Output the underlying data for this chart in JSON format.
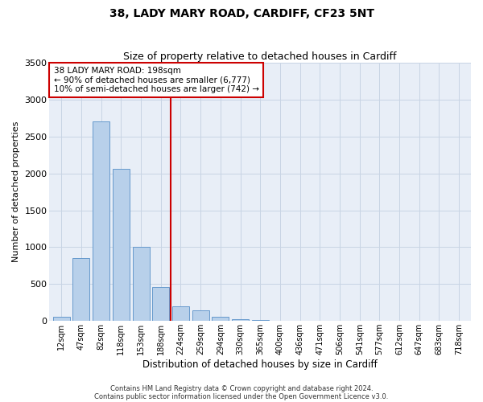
{
  "title": "38, LADY MARY ROAD, CARDIFF, CF23 5NT",
  "subtitle": "Size of property relative to detached houses in Cardiff",
  "xlabel": "Distribution of detached houses by size in Cardiff",
  "ylabel": "Number of detached properties",
  "bar_labels": [
    "12sqm",
    "47sqm",
    "82sqm",
    "118sqm",
    "153sqm",
    "188sqm",
    "224sqm",
    "259sqm",
    "294sqm",
    "330sqm",
    "365sqm",
    "400sqm",
    "436sqm",
    "471sqm",
    "506sqm",
    "541sqm",
    "577sqm",
    "612sqm",
    "647sqm",
    "683sqm",
    "718sqm"
  ],
  "bar_values": [
    55,
    855,
    2710,
    2060,
    1010,
    460,
    200,
    140,
    55,
    20,
    10,
    5,
    2,
    1,
    1,
    1,
    1,
    0,
    0,
    0,
    0
  ],
  "bar_color": "#b8d0ea",
  "bar_edge_color": "#6699cc",
  "vline_color": "#cc0000",
  "ylim": [
    0,
    3500
  ],
  "yticks": [
    0,
    500,
    1000,
    1500,
    2000,
    2500,
    3000,
    3500
  ],
  "annotation_line1": "38 LADY MARY ROAD: 198sqm",
  "annotation_line2": "← 90% of detached houses are smaller (6,777)",
  "annotation_line3": "10% of semi-detached houses are larger (742) →",
  "annotation_box_color": "#ffffff",
  "annotation_box_edge": "#cc0000",
  "bg_color": "#e8eef7",
  "footer1": "Contains HM Land Registry data © Crown copyright and database right 2024.",
  "footer2": "Contains public sector information licensed under the Open Government Licence v3.0."
}
